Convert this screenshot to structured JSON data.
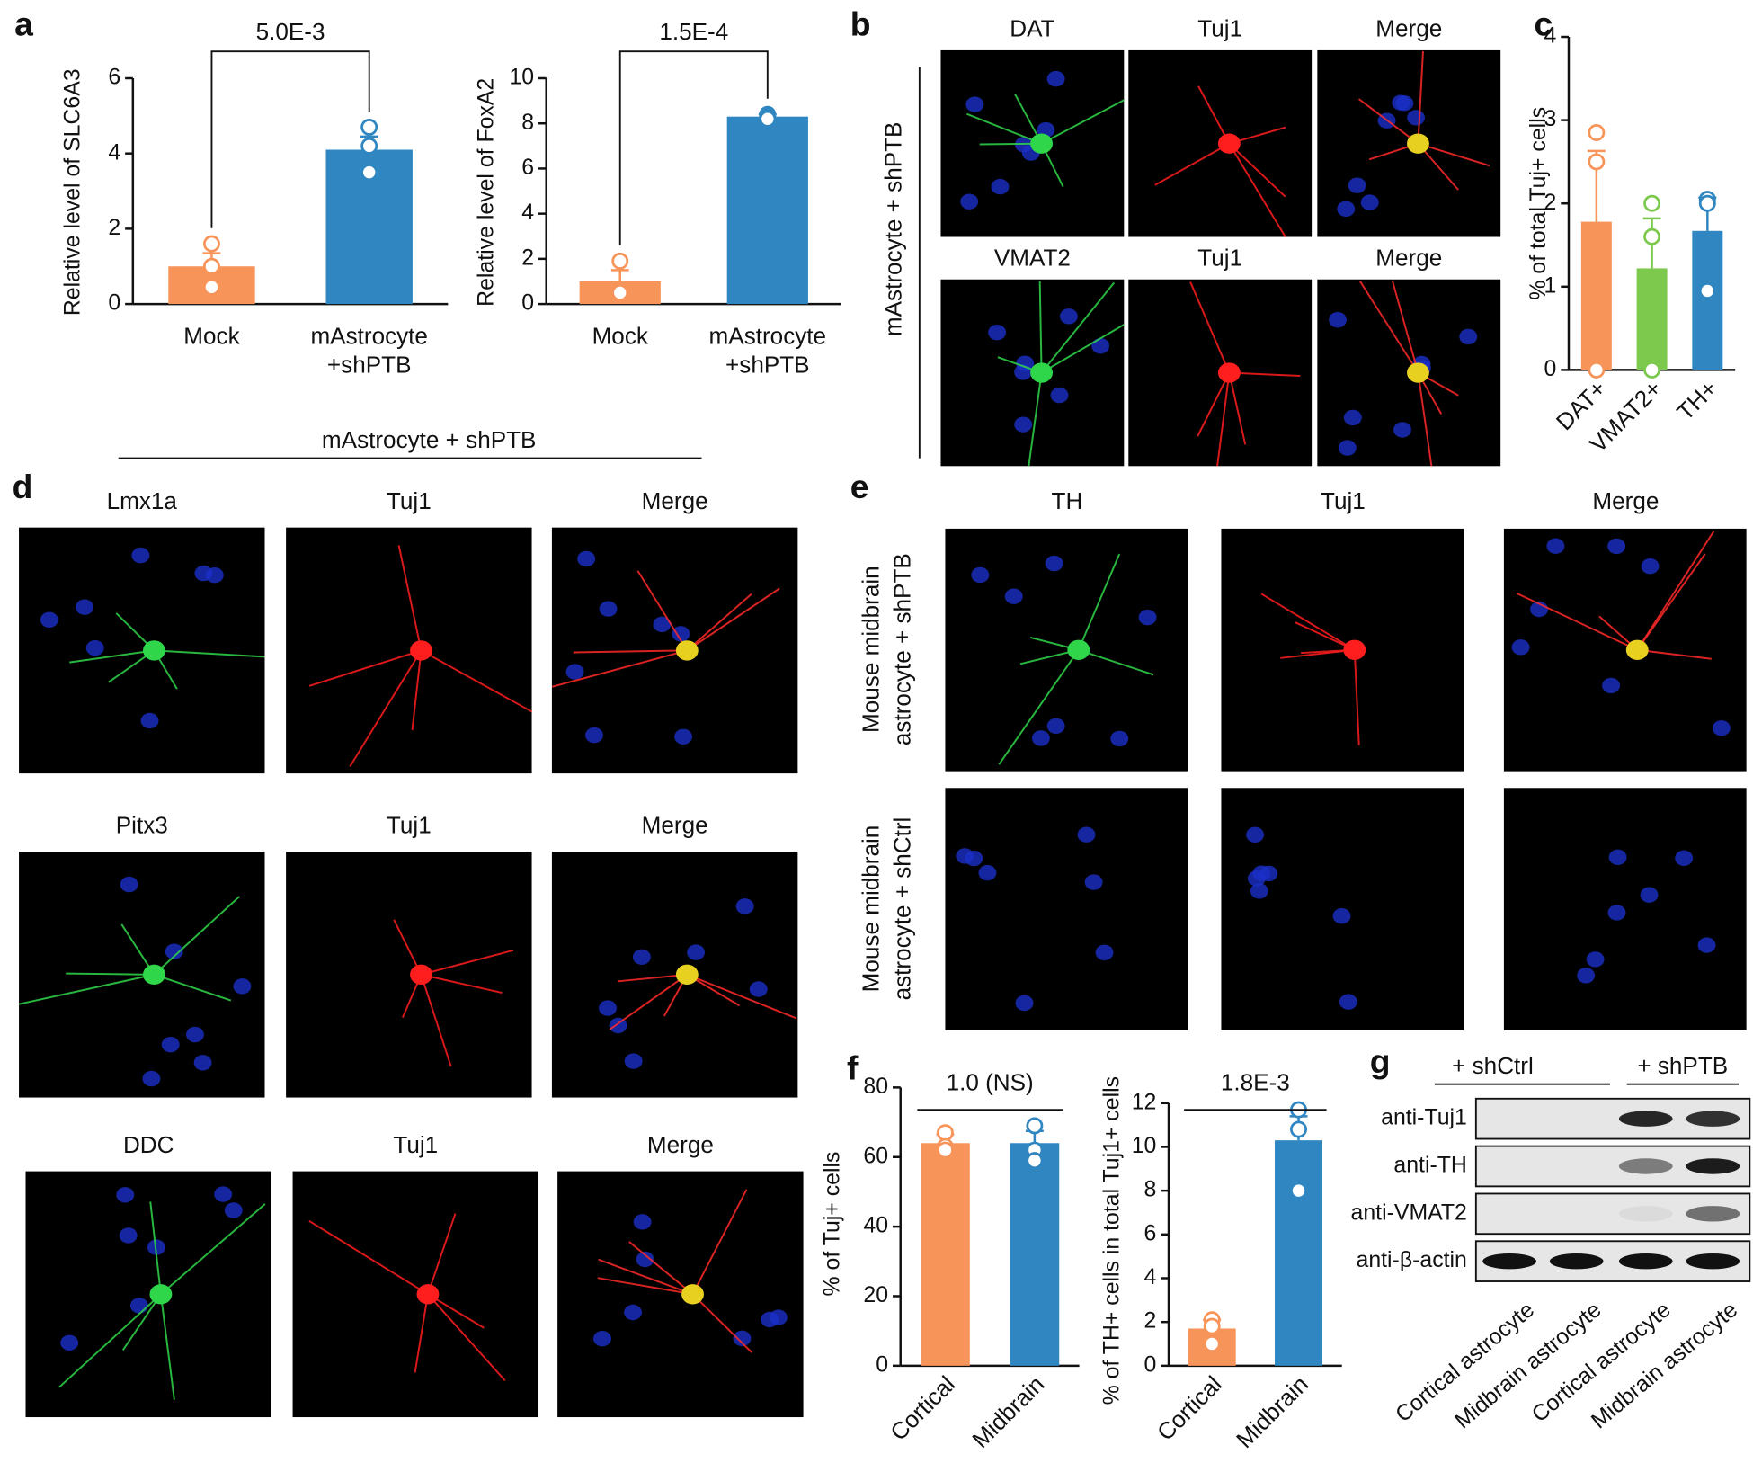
{
  "panel_labels": [
    "a",
    "b",
    "c",
    "d",
    "e",
    "f",
    "g"
  ],
  "chart_data": [
    {
      "type": "bar",
      "ylabel": "Relative level of SLC6A3",
      "annotation": "5.0E-3",
      "categories": [
        "Mock",
        [
          "mAstrocyte",
          "+shPTB"
        ]
      ],
      "values": [
        1.0,
        4.1
      ],
      "errors": [
        0.35,
        0.35
      ],
      "points": [
        [
          1.6,
          1.0,
          0.45
        ],
        [
          4.7,
          4.2,
          3.5
        ]
      ],
      "colors": [
        "#f7945a",
        "#2f86c1"
      ],
      "ylim": [
        0,
        6
      ],
      "yticks": [
        0,
        2,
        4,
        6
      ]
    },
    {
      "type": "bar",
      "ylabel": "Relative level of FoxA2",
      "annotation": "1.5E-4",
      "categories": [
        "Mock",
        [
          "mAstrocyte",
          "+shPTB"
        ]
      ],
      "values": [
        1.0,
        8.3
      ],
      "errors": [
        0.5,
        0.1
      ],
      "points": [
        [
          1.9,
          0.6,
          0.5
        ],
        [
          8.4,
          8.3,
          8.2
        ]
      ],
      "colors": [
        "#f7945a",
        "#2f86c1"
      ],
      "ylim": [
        0,
        10
      ],
      "yticks": [
        0,
        2,
        4,
        6,
        8,
        10
      ]
    },
    {
      "type": "bar",
      "ylabel": "% of total Tuj+ cells",
      "categories": [
        "DAT+",
        "VMAT2+",
        "TH+"
      ],
      "values": [
        1.78,
        1.22,
        1.67
      ],
      "errors": [
        0.85,
        0.6,
        0.4
      ],
      "points": [
        [
          2.85,
          2.5,
          0
        ],
        [
          2.0,
          1.6,
          0
        ],
        [
          2.05,
          2.0,
          0.95
        ]
      ],
      "colors": [
        "#f7945a",
        "#7cc94e",
        "#2f86c1"
      ],
      "ylim": [
        0,
        4
      ],
      "yticks": [
        0,
        1,
        2,
        3,
        4
      ]
    },
    {
      "type": "bar",
      "ylabel": "% of Tuj+ cells",
      "annotation": "1.0 (NS)",
      "categories": [
        "Cortical",
        "Midbrain"
      ],
      "values": [
        64,
        64
      ],
      "errors": [
        2.5,
        3.5
      ],
      "points": [
        [
          67,
          63,
          62
        ],
        [
          69,
          62,
          59
        ]
      ],
      "colors": [
        "#f7945a",
        "#2f86c1"
      ],
      "ylim": [
        0,
        80
      ],
      "yticks": [
        0,
        20,
        40,
        60,
        80
      ]
    },
    {
      "type": "bar",
      "ylabel": "% of TH+ cells in total Tuj1+ cells",
      "annotation": "1.8E-3",
      "categories": [
        "Cortical",
        "Midbrain"
      ],
      "values": [
        1.7,
        10.3
      ],
      "errors": [
        0.4,
        1.1
      ],
      "points": [
        [
          2.1,
          1.8,
          1.0
        ],
        [
          11.7,
          10.8,
          8.0
        ]
      ],
      "colors": [
        "#f7945a",
        "#2f86c1"
      ],
      "ylim": [
        0,
        12
      ],
      "yticks": [
        0,
        2,
        4,
        6,
        8,
        10,
        12
      ]
    }
  ],
  "panel_b": {
    "side_label": "mAstrocyte + shPTB",
    "rows": [
      [
        "DAT",
        "Tuj1",
        "Merge"
      ],
      [
        "VMAT2",
        "Tuj1",
        "Merge"
      ]
    ]
  },
  "panel_d": {
    "header": "mAstrocyte + shPTB",
    "rows": [
      [
        "Lmx1a",
        "Tuj1",
        "Merge"
      ],
      [
        "Pitx3",
        "Tuj1",
        "Merge"
      ],
      [
        "DDC",
        "Tuj1",
        "Merge"
      ]
    ]
  },
  "panel_e": {
    "columns": [
      "TH",
      "Tuj1",
      "Merge"
    ],
    "row_labels": [
      [
        "Mouse midbrain",
        "astrocyte + shPTB"
      ],
      [
        "Mouse midbrain",
        "astrocyte + shCtrl"
      ]
    ]
  },
  "panel_g": {
    "groups": [
      "+ shCtrl",
      "+ shPTB"
    ],
    "rows": [
      "anti-Tuj1",
      "anti-TH",
      "anti-VMAT2",
      "anti-β-actin"
    ],
    "columns": [
      "Cortical astrocyte",
      "Midbrain astrocyte",
      "Cortical astrocyte",
      "Midbrain astrocyte"
    ]
  }
}
